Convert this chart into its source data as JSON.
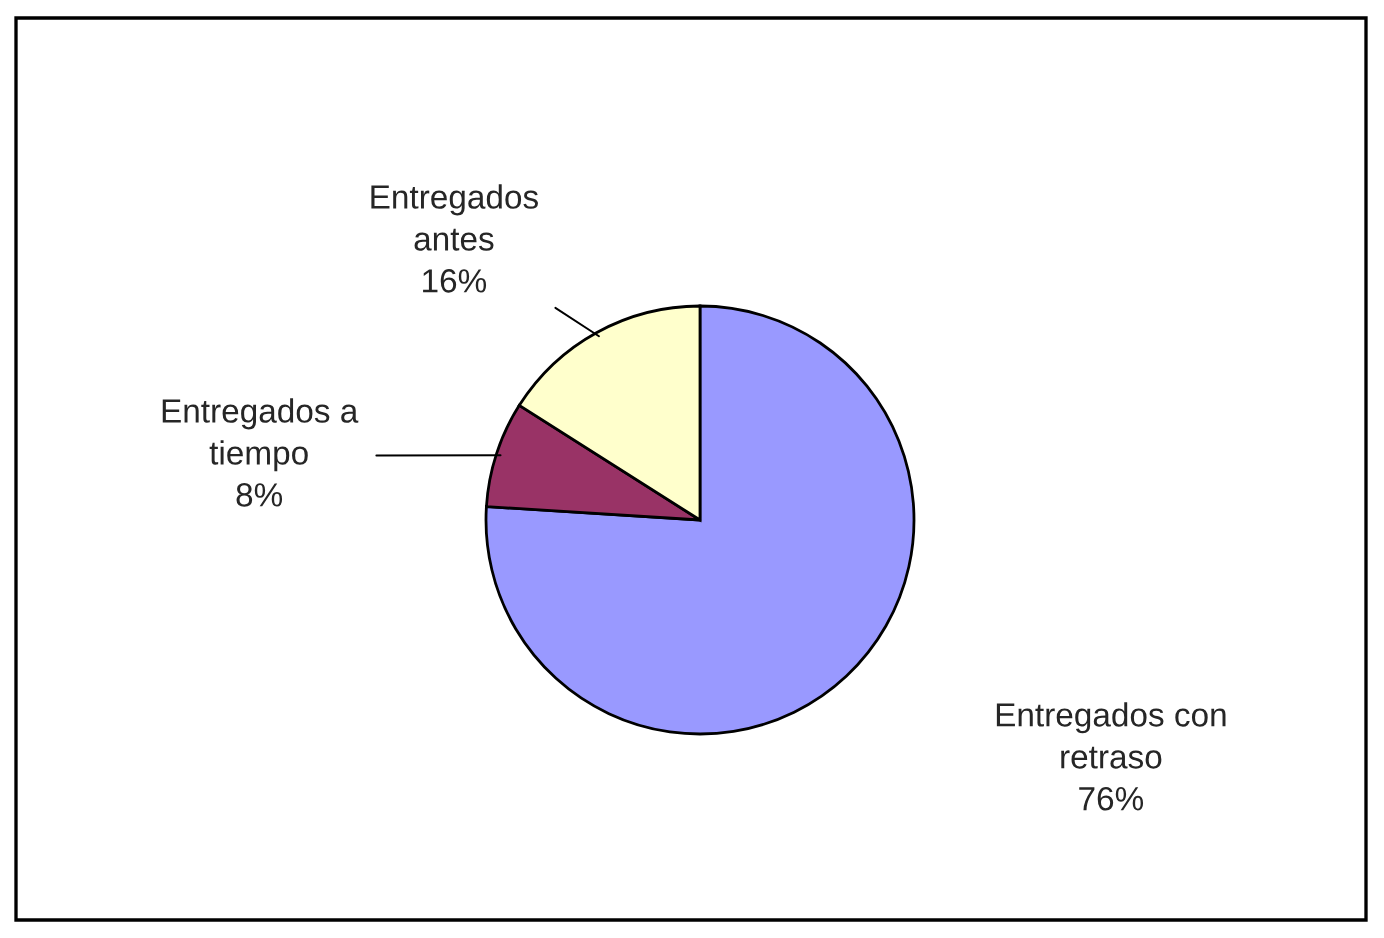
{
  "chart_data": {
    "type": "pie",
    "categories": [
      "Entregados con\nretraso",
      "Entregados a\ntiempo",
      "Entregados\nantes"
    ],
    "values": [
      76,
      8,
      16
    ],
    "colors": [
      "#9999ff",
      "#993366",
      "#ffffcc"
    ],
    "value_labels": [
      "76%",
      "8%",
      "16%"
    ],
    "legend": false
  }
}
